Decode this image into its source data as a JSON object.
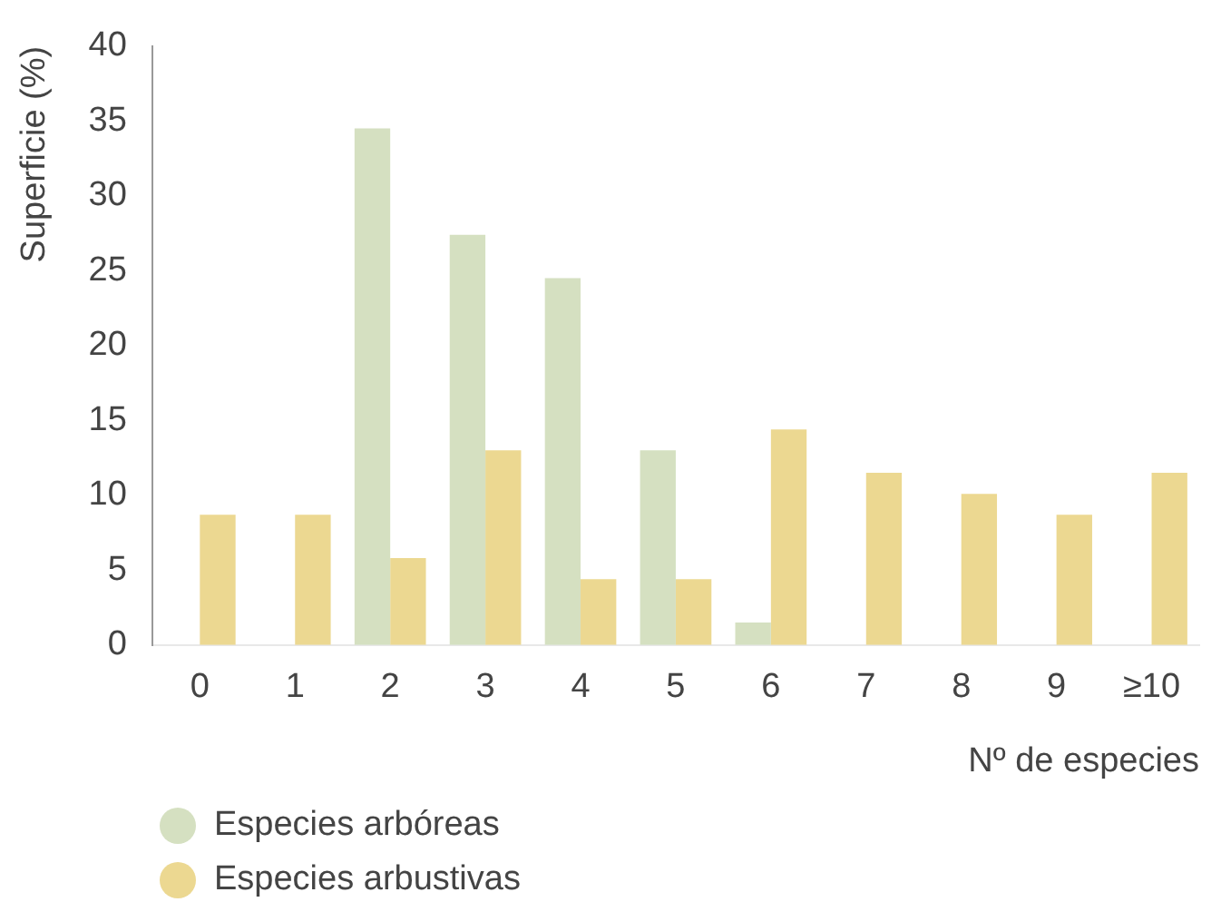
{
  "chart_data": {
    "type": "bar",
    "xlabel": "Nº de especies",
    "ylabel": "Superficie (%)",
    "categories": [
      "0",
      "1",
      "2",
      "3",
      "4",
      "5",
      "6",
      "7",
      "8",
      "9",
      "≥10"
    ],
    "series": [
      {
        "name": "Especies arbóreas",
        "color": "#d5e0c1",
        "values": [
          0,
          0,
          34.5,
          27.4,
          24.5,
          13.0,
          1.5,
          0,
          0,
          0,
          0
        ]
      },
      {
        "name": "Especies arbustivas",
        "color": "#ecd891",
        "values": [
          8.7,
          8.7,
          5.8,
          13.0,
          4.4,
          4.4,
          14.4,
          11.5,
          10.1,
          8.7,
          11.5
        ]
      }
    ],
    "ylim": [
      0,
      40
    ],
    "yticks": [
      0,
      5,
      10,
      15,
      20,
      25,
      30,
      35,
      40
    ],
    "grid": false,
    "legend": "bottom left"
  }
}
